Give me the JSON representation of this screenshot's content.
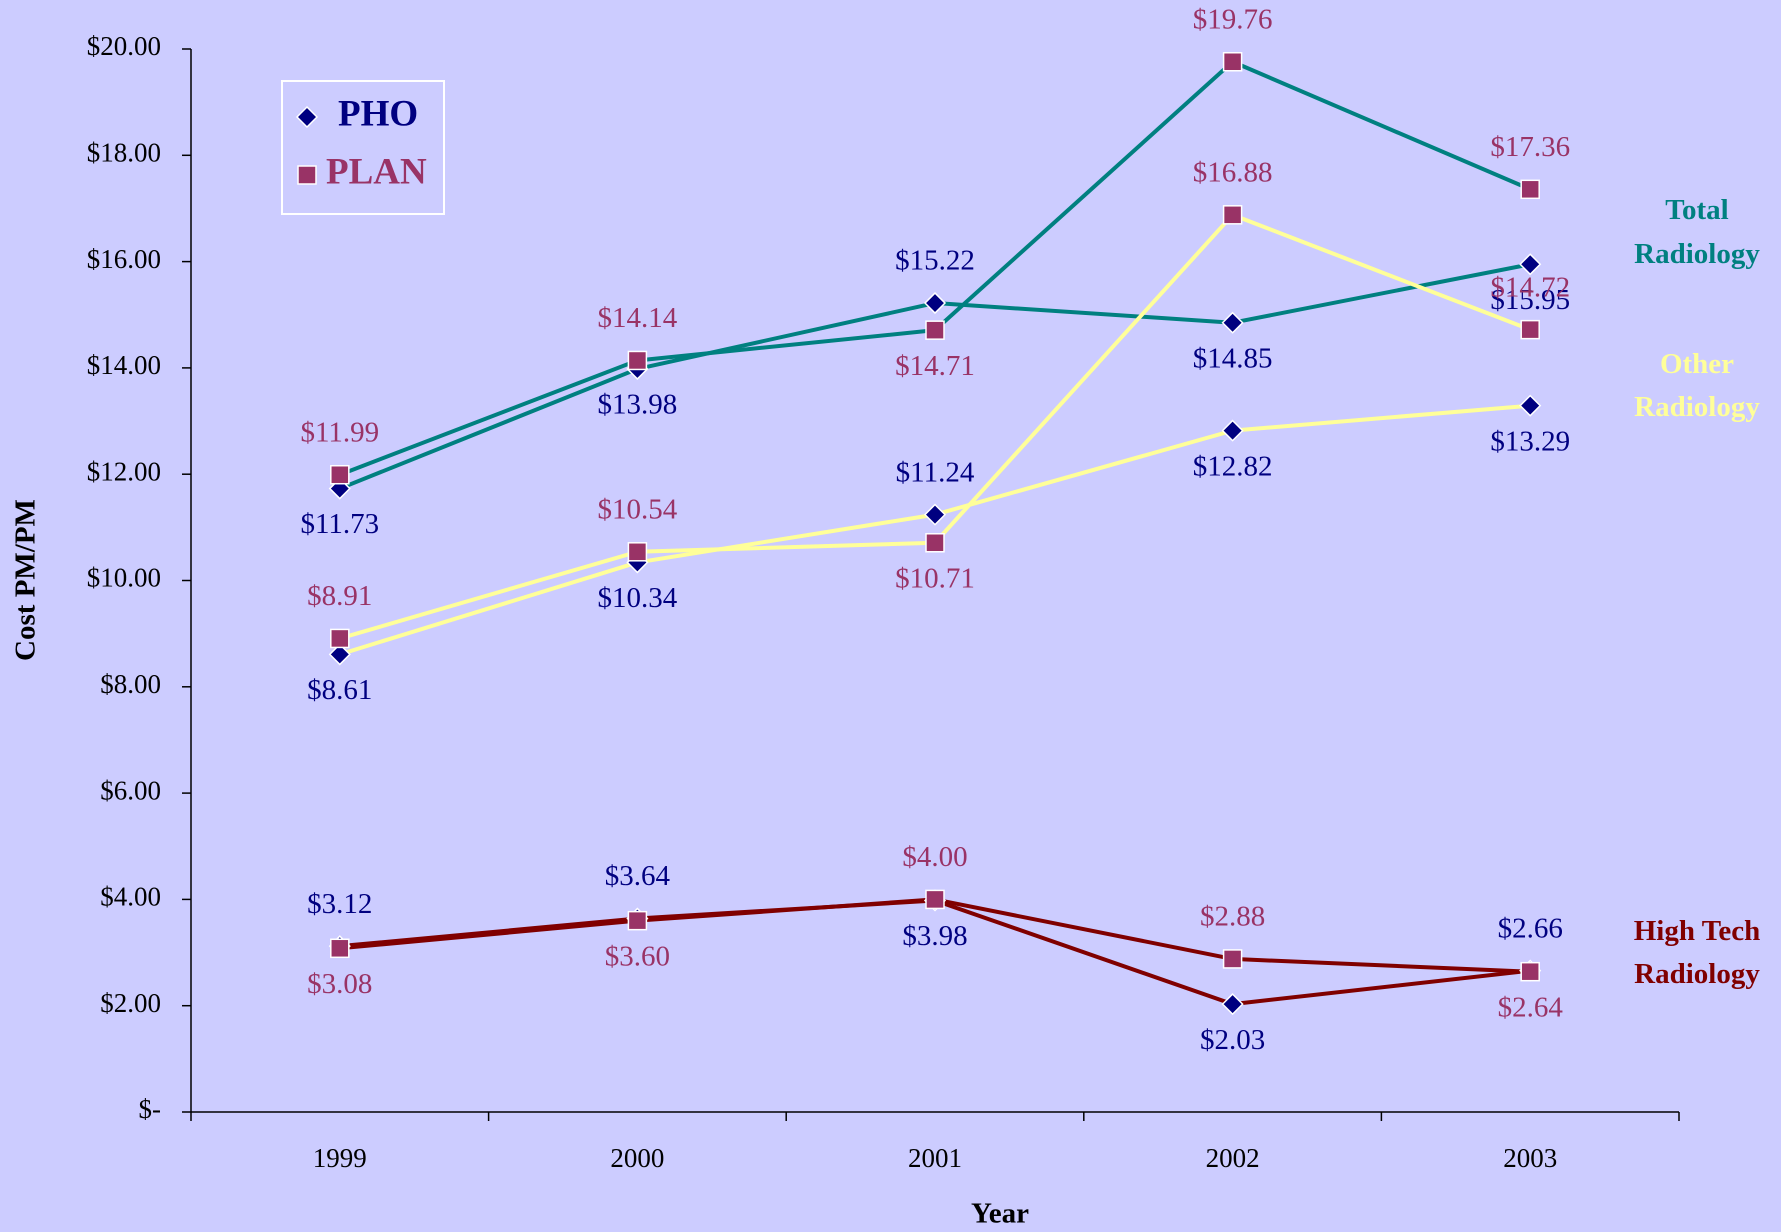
{
  "chart_data": {
    "type": "line",
    "x_label": "Year",
    "y_label": "Cost PM/PM",
    "categories": [
      "1999",
      "2000",
      "2001",
      "2002",
      "2003"
    ],
    "ylim": [
      0,
      20
    ],
    "yticks": [
      {
        "value": 0,
        "label": "$-"
      },
      {
        "value": 2,
        "label": "$2.00"
      },
      {
        "value": 4,
        "label": "$4.00"
      },
      {
        "value": 6,
        "label": "$6.00"
      },
      {
        "value": 8,
        "label": "$8.00"
      },
      {
        "value": 10,
        "label": "$10.00"
      },
      {
        "value": 12,
        "label": "$12.00"
      },
      {
        "value": 14,
        "label": "$14.00"
      },
      {
        "value": 16,
        "label": "$16.00"
      },
      {
        "value": 18,
        "label": "$18.00"
      },
      {
        "value": 20,
        "label": "$20.00"
      }
    ],
    "legend_position": "upper left",
    "markers": [
      {
        "name": "PHO",
        "color": "#000080",
        "shape": "diamond"
      },
      {
        "name": "PLAN",
        "color": "#993366",
        "shape": "square"
      }
    ],
    "series": [
      {
        "name": "Total Radiology",
        "color": "#008080",
        "lines": [
          {
            "values": [
              11.73,
              13.98,
              15.22,
              14.85,
              15.95
            ],
            "value_labels": [
              "$11.73",
              "$13.98",
              "$15.22",
              "$14.85",
              "$15.95"
            ]
          },
          {
            "values": [
              11.99,
              14.14,
              14.71,
              19.76,
              17.36
            ],
            "value_labels": [
              "$11.99",
              "$14.14",
              "$14.71",
              "$19.76",
              "$17.36"
            ]
          }
        ]
      },
      {
        "name": "Other Radiology",
        "color": "#ffff99",
        "lines": [
          {
            "values": [
              8.61,
              10.34,
              11.24,
              12.82,
              13.29
            ],
            "value_labels": [
              "$8.61",
              "$10.34",
              "$11.24",
              "$12.82",
              "$13.29"
            ]
          },
          {
            "values": [
              8.91,
              10.54,
              10.71,
              16.88,
              14.72
            ],
            "value_labels": [
              "$8.91",
              "$10.54",
              "$10.71",
              "$16.88",
              "$14.72"
            ]
          }
        ]
      },
      {
        "name": "High Tech Radiology",
        "color": "#800000",
        "lines": [
          {
            "values": [
              3.12,
              3.64,
              3.98,
              2.03,
              2.66
            ],
            "value_labels": [
              "$3.12",
              "$3.64",
              "$3.98",
              "$2.03",
              "$2.66"
            ]
          },
          {
            "values": [
              3.08,
              3.6,
              4.0,
              2.88,
              2.64
            ],
            "value_labels": [
              "$3.08",
              "$3.60",
              "$4.00",
              "$2.88",
              "$2.64"
            ]
          }
        ]
      }
    ]
  }
}
